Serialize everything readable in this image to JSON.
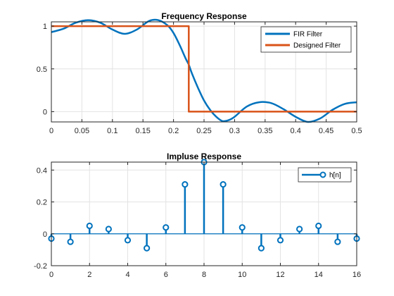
{
  "chart_data": [
    {
      "type": "line",
      "title": "Frequency Response",
      "xlabel": "",
      "ylabel": "",
      "xlim": [
        0,
        0.5
      ],
      "ylim": [
        -0.12,
        1.05
      ],
      "xticks": [
        0,
        0.05,
        0.1,
        0.15,
        0.2,
        0.25,
        0.3,
        0.35,
        0.4,
        0.45,
        0.5
      ],
      "xtick_labels": [
        "0",
        "0.05",
        "0.1",
        "0.15",
        "0.2",
        "0.25",
        "0.3",
        "0.35",
        "0.4",
        "0.45",
        "0.5"
      ],
      "yticks": [
        0,
        0.5,
        1
      ],
      "ytick_labels": [
        "0",
        "0.5",
        "1"
      ],
      "grid": true,
      "legend_placement": "top-right",
      "series": [
        {
          "name": "FIR Filter",
          "color": "#0072bd",
          "x": [
            0,
            0.02,
            0.04,
            0.06,
            0.08,
            0.1,
            0.12,
            0.14,
            0.16,
            0.175,
            0.19,
            0.2,
            0.21,
            0.22,
            0.225,
            0.23,
            0.24,
            0.25,
            0.26,
            0.27,
            0.28,
            0.29,
            0.3,
            0.32,
            0.34,
            0.36,
            0.38,
            0.4,
            0.42,
            0.44,
            0.46,
            0.48,
            0.5
          ],
          "y": [
            0.93,
            0.97,
            1.04,
            1.07,
            1.04,
            0.96,
            0.91,
            0.96,
            1.06,
            1.07,
            1.01,
            0.92,
            0.78,
            0.62,
            0.55,
            0.45,
            0.28,
            0.13,
            0.02,
            -0.06,
            -0.11,
            -0.1,
            -0.06,
            0.06,
            0.11,
            0.1,
            0.03,
            -0.06,
            -0.12,
            -0.08,
            0.02,
            0.09,
            0.11
          ]
        },
        {
          "name": "Designed Filter",
          "color": "#d95319",
          "x": [
            0,
            0.225,
            0.225,
            0.5
          ],
          "y": [
            1,
            1,
            0,
            0
          ]
        }
      ]
    },
    {
      "type": "stem",
      "title": "Impluse Response",
      "xlabel": "",
      "ylabel": "",
      "xlim": [
        0,
        16
      ],
      "ylim": [
        -0.2,
        0.45
      ],
      "xticks": [
        0,
        2,
        4,
        6,
        8,
        10,
        12,
        14,
        16
      ],
      "xtick_labels": [
        "0",
        "2",
        "4",
        "6",
        "8",
        "10",
        "12",
        "14",
        "16"
      ],
      "yticks": [
        -0.2,
        0,
        0.2,
        0.4
      ],
      "ytick_labels": [
        "-0.2",
        "0",
        "0.2",
        "0.4"
      ],
      "grid": true,
      "legend_placement": "top-right",
      "series": [
        {
          "name": "h[n]",
          "color": "#0072bd",
          "x": [
            0,
            1,
            2,
            3,
            4,
            5,
            6,
            7,
            8,
            9,
            10,
            11,
            12,
            13,
            14,
            15,
            16
          ],
          "y": [
            -0.03,
            -0.05,
            0.05,
            0.03,
            -0.04,
            -0.09,
            0.04,
            0.31,
            0.45,
            0.31,
            0.04,
            -0.09,
            -0.04,
            0.03,
            0.05,
            -0.05,
            -0.03
          ]
        }
      ]
    }
  ]
}
